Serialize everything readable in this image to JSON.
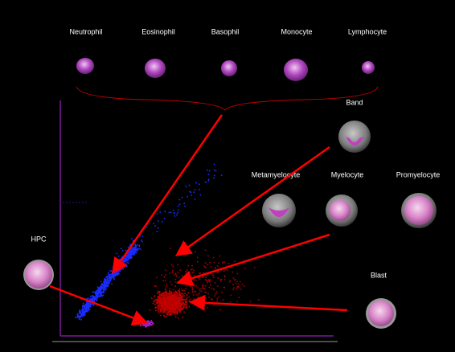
{
  "mature_cells": [
    "Neutrophil",
    "Eosinophil",
    "Basophil",
    "Monocyte",
    "Lymphocyte"
  ],
  "immature_cells": {
    "band": "Band",
    "metamyelocyte": "Metamyelocyte",
    "myelocyte": "Myelocyte",
    "promyelocyte": "Promyelocyte",
    "hpc": "HPC",
    "blast": "Blast"
  }
}
